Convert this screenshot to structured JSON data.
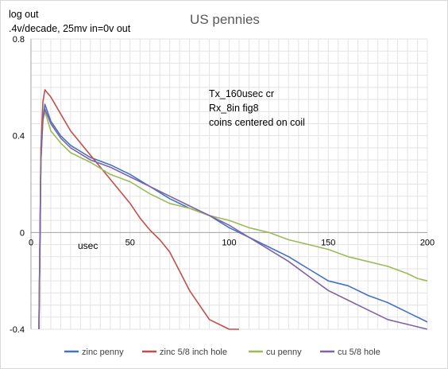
{
  "chart_data": {
    "type": "line",
    "title": "US pennies",
    "ylabel_lines": [
      "log out",
      ".4v/decade, 25mv in=0v out"
    ],
    "xunit_label": "usec",
    "annotation_lines": [
      "Tx_160usec cr",
      "Rx_8in fig8",
      "coins centered on coil"
    ],
    "xlim": [
      0,
      200
    ],
    "ylim": [
      -0.4,
      0.8
    ],
    "xticks": [
      0,
      50,
      100,
      150,
      200
    ],
    "xtick_labels": [
      "0",
      "50",
      "100",
      "150",
      "200"
    ],
    "yticks": [
      -0.4,
      0,
      0.4,
      0.8
    ],
    "ytick_labels": [
      "-0.4",
      "0",
      "0.4",
      "0.8"
    ],
    "grid": true,
    "legend_position": "bottom",
    "series": [
      {
        "name": "zinc penny",
        "color": "#4472c4",
        "x": [
          4,
          5,
          6,
          7,
          10,
          15,
          20,
          30,
          40,
          50,
          60,
          70,
          80,
          90,
          100,
          110,
          120,
          130,
          140,
          150,
          160,
          170,
          180,
          190,
          200
        ],
        "y": [
          -0.4,
          0.3,
          0.47,
          0.53,
          0.46,
          0.4,
          0.36,
          0.31,
          0.28,
          0.24,
          0.19,
          0.14,
          0.1,
          0.07,
          0.02,
          -0.02,
          -0.06,
          -0.1,
          -0.15,
          -0.2,
          -0.22,
          -0.26,
          -0.29,
          -0.33,
          -0.37
        ]
      },
      {
        "name": "zinc 5/8 inch hole",
        "color": "#c0504d",
        "x": [
          4,
          5,
          6,
          7,
          10,
          15,
          20,
          30,
          40,
          50,
          55,
          60,
          65,
          70,
          75,
          80,
          85,
          90,
          95,
          100,
          105
        ],
        "y": [
          -0.4,
          0.35,
          0.54,
          0.59,
          0.56,
          0.49,
          0.42,
          0.32,
          0.22,
          0.12,
          0.06,
          0.01,
          -0.03,
          -0.08,
          -0.16,
          -0.24,
          -0.3,
          -0.36,
          -0.38,
          -0.4,
          -0.4
        ]
      },
      {
        "name": "cu penny",
        "color": "#9bbb59",
        "x": [
          4,
          5,
          6,
          7,
          10,
          15,
          20,
          30,
          40,
          50,
          60,
          70,
          80,
          90,
          100,
          110,
          120,
          130,
          140,
          150,
          160,
          170,
          180,
          190,
          195,
          200
        ],
        "y": [
          -0.4,
          0.3,
          0.46,
          0.5,
          0.42,
          0.37,
          0.33,
          0.29,
          0.24,
          0.21,
          0.16,
          0.12,
          0.1,
          0.07,
          0.05,
          0.02,
          0.0,
          -0.03,
          -0.05,
          -0.07,
          -0.1,
          -0.12,
          -0.14,
          -0.17,
          -0.19,
          -0.2
        ]
      },
      {
        "name": "cu 5/8 hole",
        "color": "#8064a2",
        "x": [
          4,
          5,
          6,
          7,
          10,
          15,
          20,
          30,
          40,
          50,
          60,
          70,
          80,
          90,
          100,
          110,
          120,
          130,
          140,
          150,
          160,
          170,
          180,
          190,
          200
        ],
        "y": [
          -0.4,
          0.3,
          0.47,
          0.51,
          0.45,
          0.39,
          0.35,
          0.3,
          0.27,
          0.23,
          0.19,
          0.15,
          0.11,
          0.07,
          0.03,
          -0.02,
          -0.07,
          -0.12,
          -0.18,
          -0.24,
          -0.28,
          -0.32,
          -0.36,
          -0.38,
          -0.4
        ]
      }
    ]
  }
}
